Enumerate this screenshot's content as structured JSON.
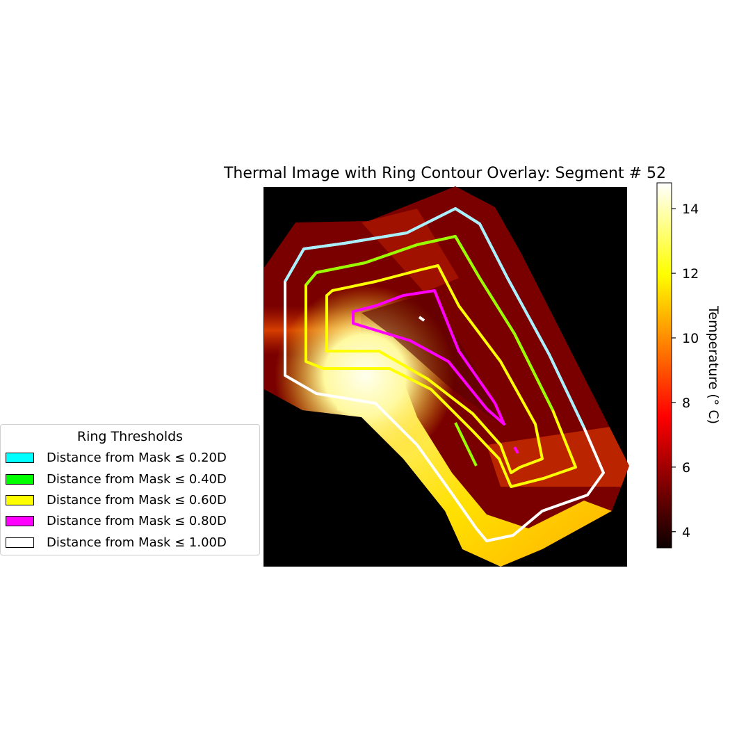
{
  "chart_data": {
    "type": "heatmap",
    "title": "Thermal Image with Ring Contour Overlay: Segment # 52",
    "colormap": "hot",
    "colorbar": {
      "label": "Temperature (° C)",
      "range": [
        3.5,
        14.8
      ],
      "ticks": [
        4,
        6,
        8,
        10,
        12,
        14
      ]
    },
    "legend": {
      "title": "Ring Thresholds",
      "placement": "left",
      "entries": [
        {
          "label": "Distance from Mask ≤ 0.20D",
          "color": "#00ffff"
        },
        {
          "label": "Distance from Mask ≤ 0.40D",
          "color": "#00ff00"
        },
        {
          "label": "Distance from Mask ≤ 0.60D",
          "color": "#ffff00"
        },
        {
          "label": "Distance from Mask ≤ 0.80D",
          "color": "#ff00ff"
        },
        {
          "label": "Distance from Mask ≤ 1.00D",
          "color": "#ffffff"
        }
      ]
    },
    "axes_visible": false,
    "background_color": "#000000"
  }
}
